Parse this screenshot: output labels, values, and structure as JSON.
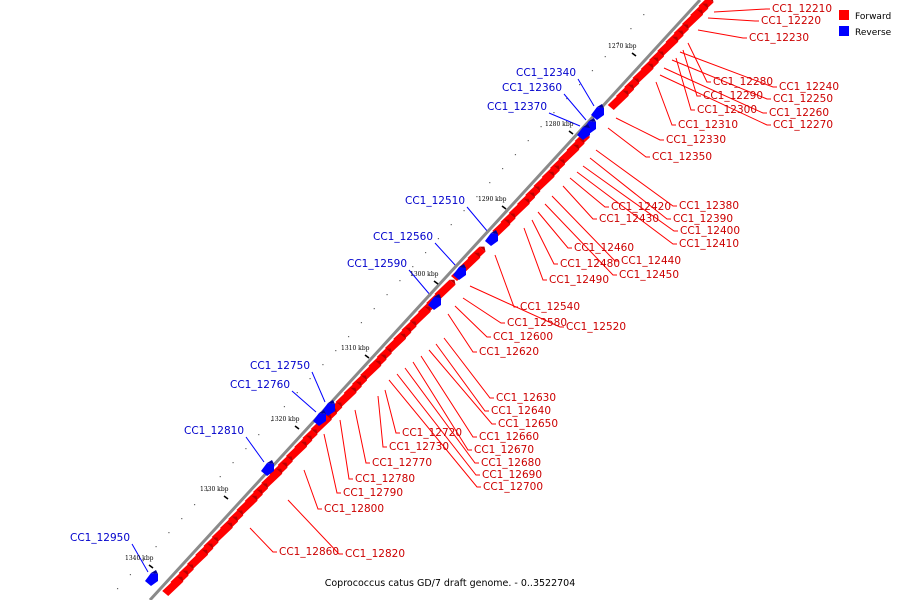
{
  "colors": {
    "forward": "#ff0000",
    "reverse": "#0000ff",
    "backbone": "#888888"
  },
  "legend": [
    {
      "name": "forward",
      "label": "Forward",
      "color": "#ff0000"
    },
    {
      "name": "reverse",
      "label": "Reverse",
      "color": "#0000ff"
    }
  ],
  "caption": "Coprococcus catus GD/7 draft genome. - 0..3522704",
  "kbp_ticks": [
    "1270 kbp",
    "1280 kbp",
    "1290 kbp",
    "1300 kbp",
    "1310 kbp",
    "1320 kbp",
    "1330 kbp",
    "1340 kbp"
  ],
  "forward_labels": [
    "CC1_12210",
    "CC1_12220",
    "CC1_12230",
    "CC1_12240",
    "CC1_12250",
    "CC1_12260",
    "CC1_12270",
    "CC1_12280",
    "CC1_12290",
    "CC1_12300",
    "CC1_12310",
    "CC1_12330",
    "CC1_12350",
    "CC1_12380",
    "CC1_12390",
    "CC1_12400",
    "CC1_12410",
    "CC1_12420",
    "CC1_12430",
    "CC1_12440",
    "CC1_12450",
    "CC1_12460",
    "CC1_12480",
    "CC1_12490",
    "CC1_12520",
    "CC1_12540",
    "CC1_12580",
    "CC1_12600",
    "CC1_12620",
    "CC1_12630",
    "CC1_12640",
    "CC1_12650",
    "CC1_12660",
    "CC1_12670",
    "CC1_12680",
    "CC1_12690",
    "CC1_12700",
    "CC1_12720",
    "CC1_12730",
    "CC1_12770",
    "CC1_12780",
    "CC1_12790",
    "CC1_12800",
    "CC1_12820",
    "CC1_12860"
  ],
  "reverse_labels": [
    "CC1_12340",
    "CC1_12360",
    "CC1_12370",
    "CC1_12510",
    "CC1_12560",
    "CC1_12590",
    "CC1_12750",
    "CC1_12760",
    "CC1_12810",
    "CC1_12950"
  ]
}
